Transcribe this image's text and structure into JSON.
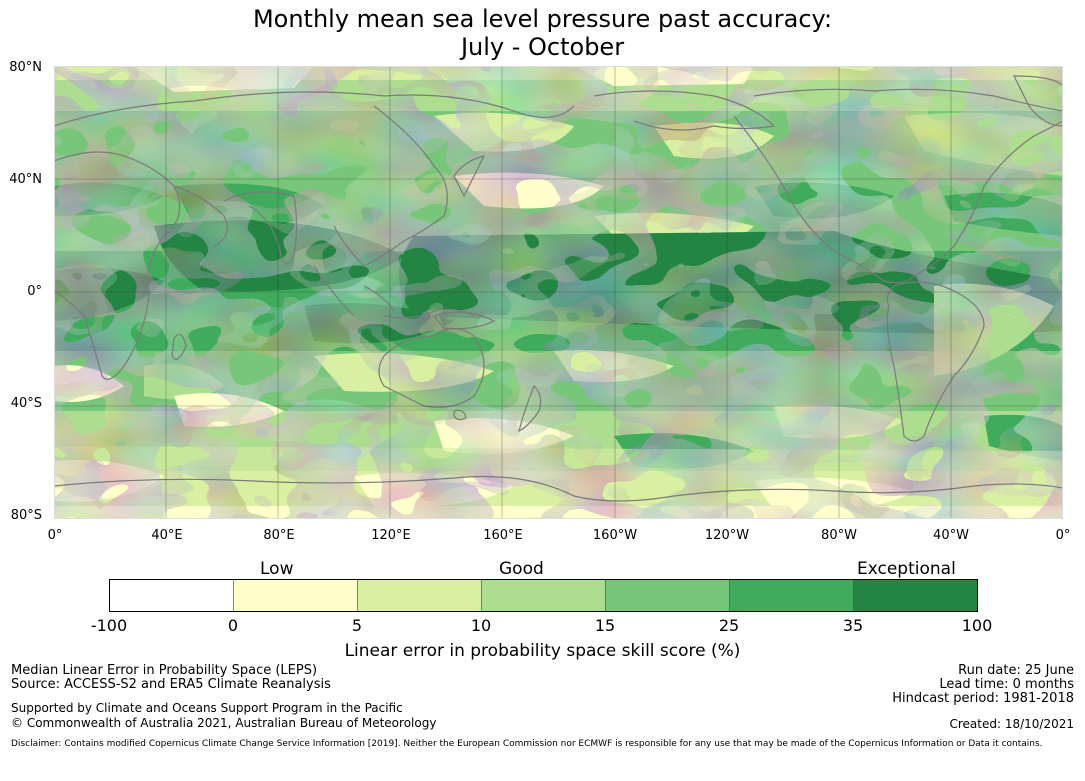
{
  "title": {
    "line1": "Monthly mean sea level pressure past accuracy:",
    "line2": "July - October"
  },
  "map": {
    "lat_labels": [
      "80°N",
      "40°N",
      "0°",
      "40°S",
      "80°S"
    ],
    "lon_labels": [
      "0°",
      "40°E",
      "80°E",
      "120°E",
      "160°E",
      "160°W",
      "120°W",
      "80°W",
      "40°W",
      "0°"
    ],
    "lat_range": [
      -80,
      80
    ],
    "lon_range": [
      0,
      360
    ],
    "gridlines": true,
    "projection": "equirectangular"
  },
  "colorbar": {
    "quality_labels": {
      "low": "Low",
      "good": "Good",
      "exceptional": "Exceptional"
    },
    "bins": [
      {
        "from": "-100",
        "to": "0",
        "color": "#ffffff"
      },
      {
        "from": "0",
        "to": "5",
        "color": "#ffffcc"
      },
      {
        "from": "5",
        "to": "10",
        "color": "#d9f0a3"
      },
      {
        "from": "10",
        "to": "15",
        "color": "#addd8e"
      },
      {
        "from": "15",
        "to": "25",
        "color": "#78c679"
      },
      {
        "from": "25",
        "to": "35",
        "color": "#41ab5d"
      },
      {
        "from": "35",
        "to": "100",
        "color": "#238443"
      }
    ],
    "ticks": [
      "-100",
      "0",
      "5",
      "10",
      "15",
      "25",
      "35",
      "100"
    ],
    "label": "Linear error in probability space skill score (%)"
  },
  "footer": {
    "left": {
      "line1": "Median Linear Error in Probability Space (LEPS)",
      "line2": "Source: ACCESS-S2 and ERA5 Climate Reanalysis",
      "line3": "Supported by Climate and Oceans Support Program in the Pacific",
      "line4": "© Commonwealth of Australia 2021, Australian Bureau of Meteorology"
    },
    "right": {
      "run_date": "Run date: 25 June",
      "lead_time": "Lead time: 0 months",
      "hindcast": "Hindcast period: 1981-2018",
      "created": "Created: 18/10/2021"
    },
    "disclaimer": "Disclaimer: Contains modified Copernicus Climate Change Service Information [2019]. Neither the European Commission nor ECMWF is responsible for any use that may be made of the Copernicus Information or Data it contains."
  },
  "colors": {
    "coastline": "#7a7a7a",
    "gridline": "#3a3a3a"
  }
}
